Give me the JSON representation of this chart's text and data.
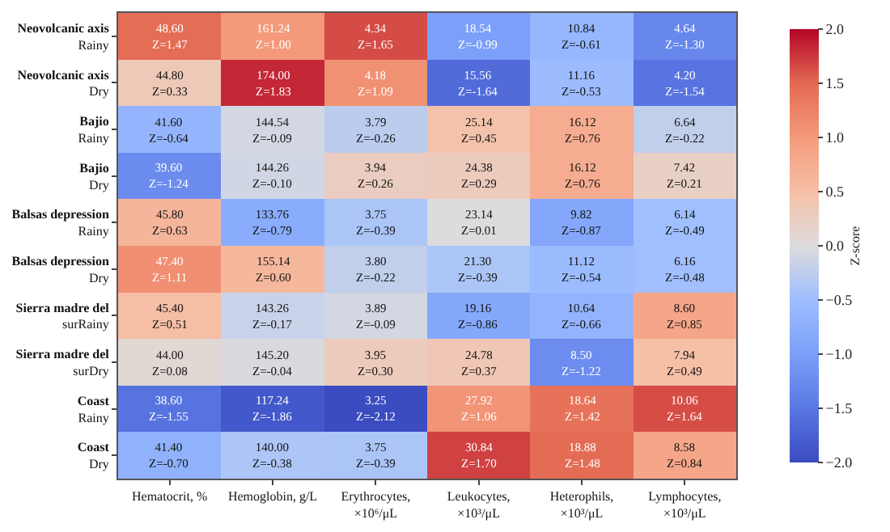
{
  "chart_data": {
    "type": "heatmap",
    "categories": [
      "Hematocrit, %",
      "Hemoglobin, g/L",
      "Erythrocytes,\n×10⁶/μL",
      "Leukocytes,\n×10³/μL",
      "Heterophils,\n×10³/μL",
      "Lymphocytes,\n×10³/μL"
    ],
    "y_categories": [
      "Neovolcanic axis\nRainy",
      "Neovolcanic axis\nDry",
      "Bajio\nRainy",
      "Bajio\nDry",
      "Balsas depression\nRainy",
      "Balsas depression\nDry",
      "Sierra madre del\nsurRainy",
      "Sierra madre del\nsurDry",
      "Coast\nRainy",
      "Coast\nDry"
    ],
    "cells": [
      [
        1.47,
        1.0,
        1.65,
        -0.99,
        -0.61,
        -1.3
      ],
      [
        0.33,
        1.83,
        1.09,
        -1.64,
        -0.53,
        -1.54
      ],
      [
        -0.64,
        -0.09,
        -0.26,
        0.45,
        0.76,
        -0.22
      ],
      [
        -1.24,
        -0.1,
        0.26,
        0.29,
        0.76,
        0.21
      ],
      [
        0.63,
        -0.79,
        -0.39,
        0.01,
        -0.87,
        -0.49
      ],
      [
        1.11,
        0.6,
        -0.22,
        -0.39,
        -0.54,
        -0.48
      ],
      [
        0.51,
        -0.17,
        -0.09,
        -0.86,
        -0.66,
        0.85
      ],
      [
        0.08,
        -0.04,
        0.3,
        0.37,
        -1.22,
        0.49
      ],
      [
        -1.55,
        -1.86,
        -2.12,
        1.06,
        1.42,
        1.64
      ],
      [
        -0.7,
        -0.38,
        -0.39,
        1.7,
        1.48,
        0.84
      ]
    ],
    "cell_labels": [
      [
        "48.60\nZ=1.47",
        "161.24\nZ=1.00",
        "4.34\nZ=1.65",
        "18.54\nZ=-0.99",
        "10.84\nZ=-0.61",
        "4.64\nZ=-1.30"
      ],
      [
        "44.80\nZ=0.33",
        "174.00\nZ=1.83",
        "4.18\nZ=1.09",
        "15.56\nZ=-1.64",
        "11.16\nZ=-0.53",
        "4.20\nZ=-1.54"
      ],
      [
        "41.60\nZ=-0.64",
        "144.54\nZ=-0.09",
        "3.79\nZ=-0.26",
        "25.14\nZ=0.45",
        "16.12\nZ=0.76",
        "6.64\nZ=-0.22"
      ],
      [
        "39.60\nZ=-1.24",
        "144.26\nZ=-0.10",
        "3.94\nZ=0.26",
        "24.38\nZ=0.29",
        "16.12\nZ=0.76",
        "7.42\nZ=0.21"
      ],
      [
        "45.80\nZ=0.63",
        "133.76\nZ=-0.79",
        "3.75\nZ=-0.39",
        "23.14\nZ=0.01",
        "9.82\nZ=-0.87",
        "6.14\nZ=-0.49"
      ],
      [
        "47.40\nZ=1.11",
        "155.14\nZ=0.60",
        "3.80\nZ=-0.22",
        "21.30\nZ=-0.39",
        "11.12\nZ=-0.54",
        "6.16\nZ=-0.48"
      ],
      [
        "45.40\nZ=0.51",
        "143.26\nZ=-0.17",
        "3.89\nZ=-0.09",
        "19.16\nZ=-0.86",
        "10.64\nZ=-0.66",
        "8.60\nZ=0.85"
      ],
      [
        "44.00\nZ=0.08",
        "145.20\nZ=-0.04",
        "3.95\nZ=0.30",
        "24.78\nZ=0.37",
        "8.50\nZ=-1.22",
        "7.94\nZ=0.49"
      ],
      [
        "38.60\nZ=-1.55",
        "117.24\nZ=-1.86",
        "3.25\nZ=-2.12",
        "27.92\nZ=1.06",
        "18.64\nZ=1.42",
        "10.06\nZ=1.64"
      ],
      [
        "41.40\nZ=-0.70",
        "140.00\nZ=-0.38",
        "3.75\nZ=-0.39",
        "30.84\nZ=1.70",
        "18.88\nZ=1.48",
        "8.58\nZ=0.84"
      ]
    ],
    "clabel": "Z-score",
    "clim": [
      -2,
      2
    ],
    "cticks": [
      {
        "value": -2,
        "label": "−2.0"
      },
      {
        "value": -1.5,
        "label": "−1.5"
      },
      {
        "value": -1,
        "label": "−1.0"
      },
      {
        "value": -0.5,
        "label": "−0.5"
      },
      {
        "value": 0,
        "label": "0.0"
      },
      {
        "value": 0.5,
        "label": "0.5"
      },
      {
        "value": 1,
        "label": "1.0"
      },
      {
        "value": 1.5,
        "label": "1.5"
      },
      {
        "value": 2,
        "label": "2.0"
      }
    ]
  }
}
